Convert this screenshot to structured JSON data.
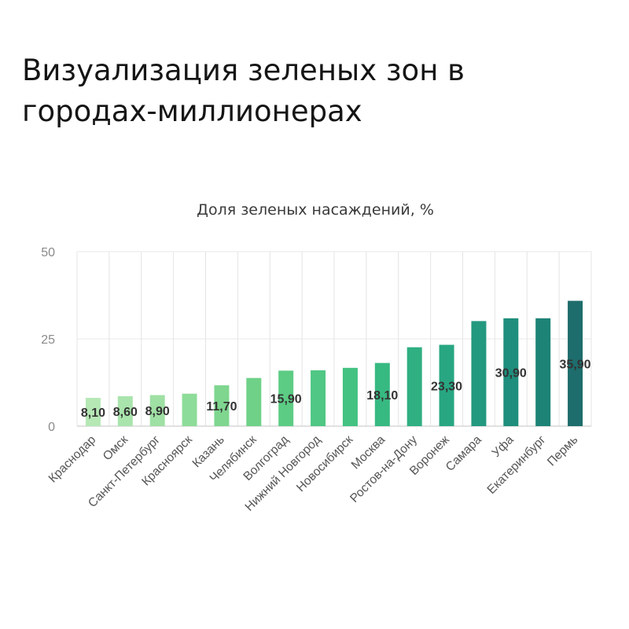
{
  "page": {
    "headline": "Визуализация зеленых зон в городах-миллионерах"
  },
  "chart_data": {
    "type": "bar",
    "title": "Доля зеленых насаждений, %",
    "ylim": [
      0,
      50
    ],
    "yticks": [
      0,
      25,
      50
    ],
    "grid": true,
    "categories": [
      "Краснодар",
      "Омск",
      "Санкт-Петербург",
      "Красноярск",
      "Казань",
      "Челябинск",
      "Волгоград",
      "Нижний Новгород",
      "Новосибирск",
      "Москва",
      "Ростов-на-Дону",
      "Воронеж",
      "Самара",
      "Уфа",
      "Екатеринбург",
      "Пермь"
    ],
    "values": [
      8.1,
      8.6,
      8.9,
      9.3,
      11.7,
      13.8,
      15.9,
      16.0,
      16.7,
      18.1,
      22.6,
      23.3,
      30.1,
      30.9,
      30.9,
      35.9
    ],
    "data_labels": [
      "8,10",
      "8,60",
      "8,90",
      "",
      "11,70",
      "",
      "15,90",
      "",
      "",
      "18,10",
      "",
      "23,30",
      "",
      "30,90",
      "",
      "35,90"
    ],
    "colors": [
      "#b5e8b5",
      "#a9e4ac",
      "#9fe0a4",
      "#8edc99",
      "#7fd68f",
      "#6fd188",
      "#5ccc84",
      "#50c784",
      "#43c282",
      "#37b982",
      "#2faf82",
      "#28a682",
      "#23997f",
      "#1f8e7c",
      "#1d8377",
      "#1d6d6c"
    ]
  }
}
